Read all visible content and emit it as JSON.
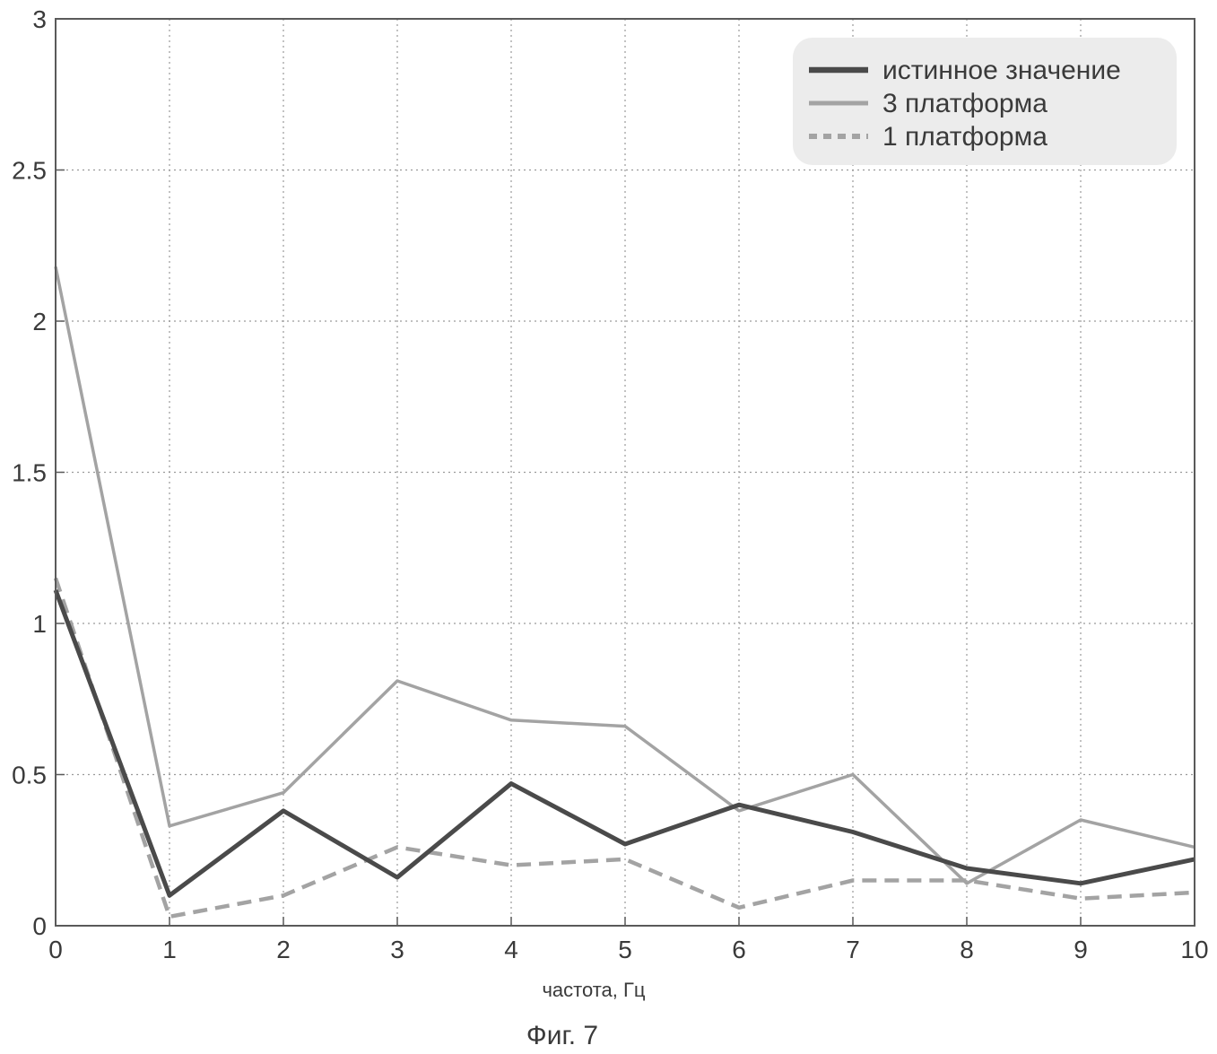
{
  "chart_data": {
    "type": "line",
    "xlabel": "частота, Гц",
    "ylabel": "",
    "xlim": [
      0,
      10
    ],
    "ylim": [
      0,
      3
    ],
    "x_ticks": [
      "0",
      "1",
      "2",
      "3",
      "4",
      "5",
      "6",
      "7",
      "8",
      "9",
      "10"
    ],
    "y_ticks": [
      "0",
      "0.5",
      "1",
      "1.5",
      "2",
      "2.5",
      "3"
    ],
    "grid": true,
    "legend_position": "top-right",
    "x": [
      0,
      1,
      2,
      3,
      4,
      5,
      6,
      7,
      8,
      9,
      10
    ],
    "series": [
      {
        "name": "истинное значение",
        "style": "solid-thick",
        "color": "#4a4a4a",
        "values": [
          1.11,
          0.1,
          0.38,
          0.16,
          0.47,
          0.27,
          0.4,
          0.31,
          0.19,
          0.14,
          0.22
        ]
      },
      {
        "name": "3 платформа",
        "style": "solid",
        "color": "#a3a3a3",
        "values": [
          2.18,
          0.33,
          0.44,
          0.81,
          0.68,
          0.66,
          0.38,
          0.5,
          0.14,
          0.35,
          0.26
        ]
      },
      {
        "name": "1 платформа",
        "style": "dashed",
        "color": "#a3a3a3",
        "values": [
          1.15,
          0.03,
          0.1,
          0.26,
          0.2,
          0.22,
          0.06,
          0.15,
          0.15,
          0.09,
          0.11
        ]
      }
    ]
  },
  "caption": "Фиг. 7"
}
